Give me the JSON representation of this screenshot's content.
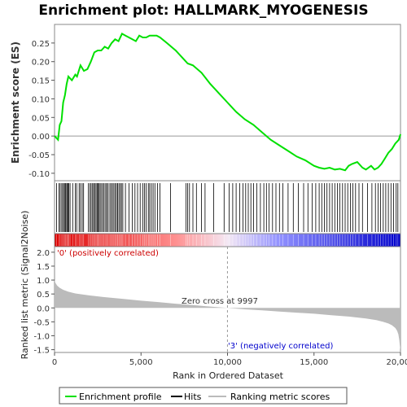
{
  "chart_data": {
    "type": "line",
    "title": "Enrichment plot: HALLMARK_MYOGENESIS",
    "es_panel": {
      "ylabel": "Enrichment score (ES)",
      "ylim": [
        -0.12,
        0.3
      ],
      "yticks": [
        -0.1,
        -0.05,
        0.0,
        0.05,
        0.1,
        0.15,
        0.2,
        0.25
      ],
      "ytick_labels": [
        "-0.10",
        "-0.05",
        "0.00",
        "0.05",
        "0.10",
        "0.15",
        "0.20",
        "0.25"
      ],
      "series": [
        {
          "name": "Enrichment profile",
          "color": "#00e000",
          "x": [
            0,
            200,
            300,
            400,
            500,
            600,
            700,
            800,
            900,
            1000,
            1200,
            1300,
            1500,
            1700,
            1900,
            2100,
            2300,
            2500,
            2700,
            2900,
            3100,
            3300,
            3500,
            3700,
            3900,
            4100,
            4300,
            4500,
            4700,
            4900,
            5100,
            5300,
            5500,
            5700,
            5900,
            6100,
            6500,
            7000,
            7500,
            7700,
            8000,
            8500,
            9000,
            9500,
            10000,
            10500,
            11000,
            11500,
            12000,
            12500,
            13000,
            13500,
            14000,
            14500,
            15000,
            15300,
            15600,
            15900,
            16200,
            16500,
            16800,
            17000,
            17200,
            17500,
            17800,
            18000,
            18300,
            18500,
            18700,
            18900,
            19100,
            19300,
            19500,
            19700,
            19900,
            20000
          ],
          "y": [
            0.0,
            -0.01,
            0.03,
            0.04,
            0.09,
            0.11,
            0.14,
            0.16,
            0.155,
            0.15,
            0.165,
            0.16,
            0.19,
            0.175,
            0.18,
            0.2,
            0.225,
            0.23,
            0.23,
            0.24,
            0.235,
            0.25,
            0.26,
            0.255,
            0.275,
            0.27,
            0.265,
            0.26,
            0.255,
            0.27,
            0.265,
            0.265,
            0.27,
            0.27,
            0.27,
            0.265,
            0.25,
            0.23,
            0.205,
            0.195,
            0.19,
            0.17,
            0.14,
            0.115,
            0.09,
            0.065,
            0.045,
            0.03,
            0.01,
            -0.01,
            -0.025,
            -0.04,
            -0.055,
            -0.065,
            -0.08,
            -0.085,
            -0.088,
            -0.085,
            -0.09,
            -0.088,
            -0.092,
            -0.08,
            -0.075,
            -0.07,
            -0.085,
            -0.09,
            -0.08,
            -0.09,
            -0.085,
            -0.075,
            -0.06,
            -0.045,
            -0.035,
            -0.02,
            -0.01,
            0.005
          ]
        }
      ]
    },
    "hits_panel": {
      "legend_name": "Hits",
      "hit_positions": [
        120,
        260,
        330,
        420,
        480,
        560,
        610,
        660,
        720,
        770,
        830,
        900,
        1050,
        1200,
        1280,
        1420,
        1500,
        1600,
        1680,
        1950,
        2050,
        2120,
        2200,
        2260,
        2330,
        2400,
        2460,
        2520,
        2580,
        2640,
        2720,
        2800,
        2870,
        2960,
        3020,
        3100,
        3200,
        3280,
        3350,
        3430,
        3500,
        3580,
        3650,
        3720,
        3800,
        3870,
        3950,
        4100,
        4300,
        4500,
        4650,
        4800,
        4950,
        5100,
        5200,
        5300,
        5420,
        5500,
        5600,
        5700,
        5800,
        5950,
        6100,
        6700,
        7600,
        7700,
        7800,
        8000,
        8200,
        8500,
        8700,
        9200,
        9800,
        10100,
        10300,
        10500,
        10700,
        10900,
        11050,
        11200,
        11350,
        11500,
        11700,
        11900,
        12100,
        12250,
        12400,
        12600,
        12800,
        13000,
        13200,
        13500,
        13800,
        14100,
        14400,
        14650,
        14900,
        15100,
        15300,
        15450,
        15600,
        15750,
        15900,
        16050,
        16200,
        16350,
        16500,
        16650,
        16800,
        16950,
        17100,
        17250,
        17400,
        17600,
        17800,
        18100,
        18350,
        18550,
        18700,
        18850,
        19000,
        19150,
        19300,
        19450,
        19600,
        19750,
        19850
      ]
    },
    "ranked_panel": {
      "ylabel": "Ranked list metric (Signal2Noise)",
      "xlabel": "Rank in Ordered Dataset",
      "xlim": [
        0,
        20000
      ],
      "ylim": [
        -1.6,
        2.2
      ],
      "xticks": [
        0,
        5000,
        10000,
        15000,
        20000
      ],
      "xtick_labels": [
        "0",
        "5,000",
        "10,000",
        "15,000",
        "20,000"
      ],
      "yticks": [
        -1.5,
        -1.0,
        -0.5,
        0.0,
        0.5,
        1.0,
        1.5,
        2.0
      ],
      "ytick_labels": [
        "-1.5",
        "-1.0",
        "-0.5",
        "0.0",
        "0.5",
        "1.0",
        "1.5",
        "2.0"
      ],
      "metric_x": [
        0,
        50,
        150,
        300,
        500,
        800,
        1200,
        2000,
        3000,
        4000,
        5000,
        6000,
        7000,
        8000,
        9000,
        9997,
        11000,
        12000,
        13000,
        14000,
        15000,
        16000,
        17000,
        18000,
        18600,
        19000,
        19300,
        19500,
        19700,
        19800,
        19880,
        19930,
        19970,
        20000
      ],
      "metric_y": [
        1.0,
        0.9,
        0.8,
        0.72,
        0.65,
        0.58,
        0.52,
        0.45,
        0.38,
        0.32,
        0.26,
        0.21,
        0.15,
        0.1,
        0.05,
        0.0,
        -0.05,
        -0.09,
        -0.13,
        -0.17,
        -0.21,
        -0.26,
        -0.31,
        -0.38,
        -0.44,
        -0.5,
        -0.56,
        -0.62,
        -0.72,
        -0.82,
        -0.95,
        -1.15,
        -1.4,
        -1.5
      ],
      "zero_cross": 9997,
      "annotation_zero": "Zero cross at 9997",
      "annotation_pos": "'0' (positively correlated)",
      "annotation_neg": "'3' (negatively correlated)",
      "color_pos": "#dd0000",
      "color_neg": "#0000cc"
    },
    "legend": {
      "placement": "bottom",
      "items": [
        {
          "label": "Enrichment profile",
          "color": "#00e000"
        },
        {
          "label": "Hits",
          "color": "#000000"
        },
        {
          "label": "Ranking metric scores",
          "color": "#bbbbbb"
        }
      ]
    }
  }
}
